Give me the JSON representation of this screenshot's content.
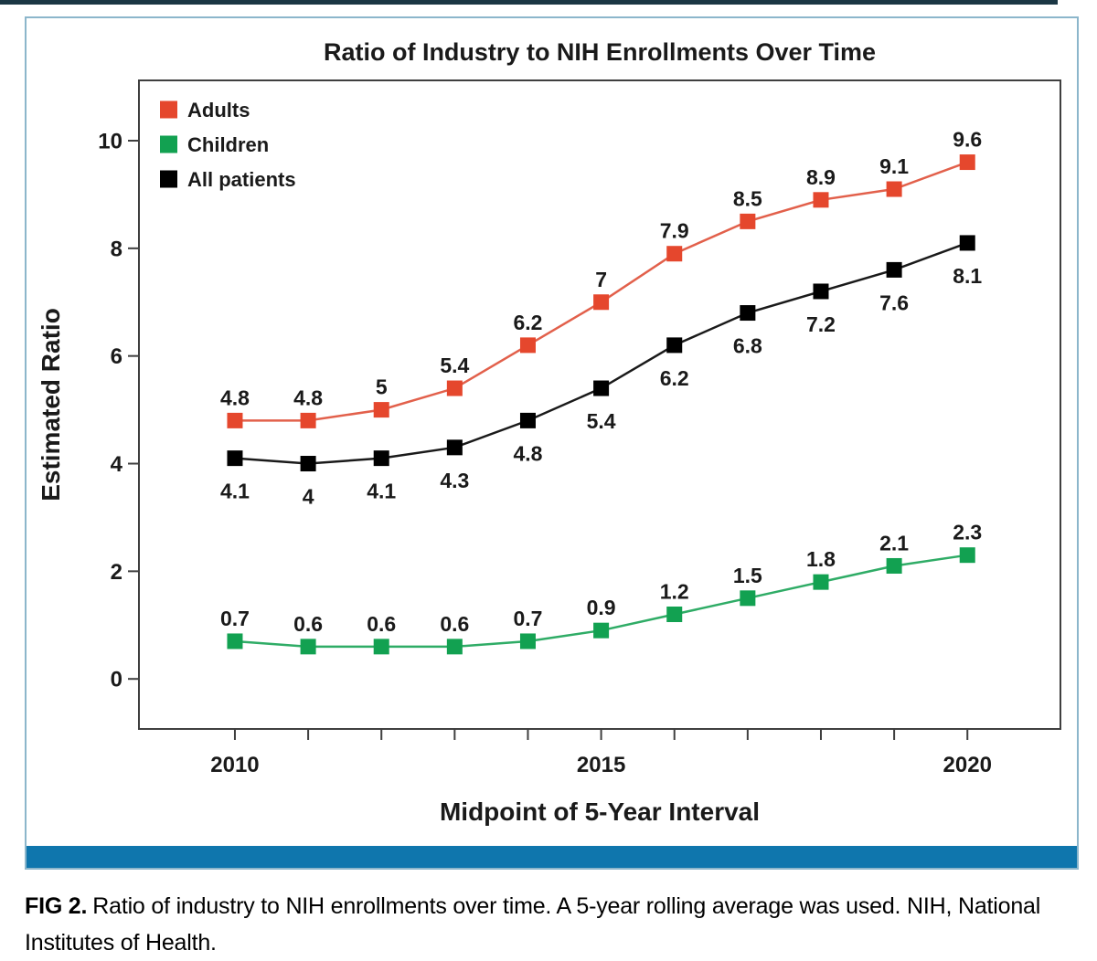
{
  "window": {
    "top_edge_color": "#1b3744"
  },
  "figure": {
    "border_color": "#8cb6cb",
    "accent_bar_color": "#0f76ad",
    "background": "#ffffff"
  },
  "chart_data": {
    "type": "line",
    "title": "Ratio of Industry to NIH Enrollments Over Time",
    "xlabel": "Midpoint of 5-Year Interval",
    "ylabel": "Estimated Ratio",
    "x": [
      2010,
      2011,
      2012,
      2013,
      2014,
      2015,
      2016,
      2017,
      2018,
      2019,
      2020
    ],
    "series": [
      {
        "name": "Adults",
        "marker_color": "#e5472d",
        "line_color": "#e2604b",
        "label_position": "above",
        "values": [
          4.8,
          4.8,
          5,
          5.4,
          6.2,
          7,
          7.9,
          8.5,
          8.9,
          9.1,
          9.6
        ]
      },
      {
        "name": "Children",
        "marker_color": "#12a151",
        "line_color": "#2fac66",
        "label_position": "above",
        "values": [
          0.7,
          0.6,
          0.6,
          0.6,
          0.7,
          0.9,
          1.2,
          1.5,
          1.8,
          2.1,
          2.3
        ]
      },
      {
        "name": "All patients",
        "marker_color": "#000000",
        "line_color": "#1a1a1a",
        "label_position": "below",
        "values": [
          4.1,
          4,
          4.1,
          4.3,
          4.8,
          5.4,
          6.2,
          6.8,
          7.2,
          7.6,
          8.1
        ]
      }
    ],
    "legend": {
      "position": "top-left",
      "entries": [
        "Adults",
        "Children",
        "All patients"
      ]
    },
    "x_ticks": [
      2010,
      2011,
      2012,
      2013,
      2014,
      2015,
      2016,
      2017,
      2018,
      2019,
      2020
    ],
    "x_labeled_ticks": [
      2010,
      2015,
      2020
    ],
    "y_ticks": [
      0,
      2,
      4,
      6,
      8,
      10
    ],
    "xlim": [
      2008.69,
      2021.27
    ],
    "ylim": [
      -0.93,
      11.12
    ],
    "grid": false,
    "axis_color": "#3f3f3f",
    "text_color": "#1a1a1a"
  },
  "caption": {
    "label": "FIG 2.",
    "text": "Ratio of industry to NIH enrollments over time. A 5-year rolling average was used. NIH, National Institutes of Health."
  }
}
